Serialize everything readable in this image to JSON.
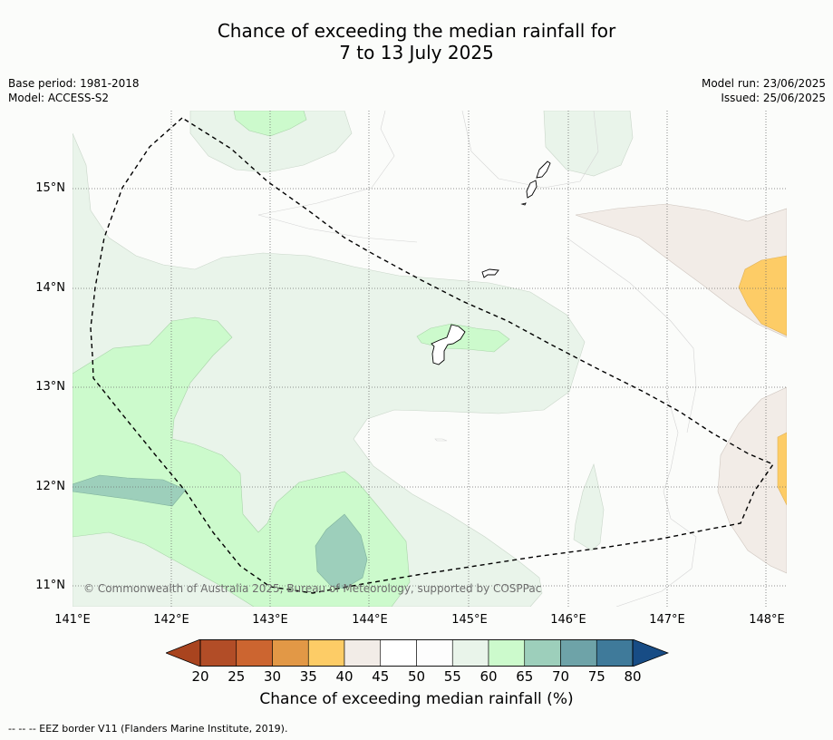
{
  "title": {
    "line1": "Chance of exceeding the median rainfall for",
    "line2": "7 to 13 July 2025"
  },
  "meta": {
    "base_period": "Base period: 1981-2018",
    "model": "Model: ACCESS-S2",
    "model_run": "Model run: 23/06/2025",
    "issued": "Issued: 25/06/2025"
  },
  "map": {
    "lat_labels": [
      "15°N",
      "14°N",
      "13°N",
      "12°N",
      "11°N"
    ],
    "lon_labels": [
      "141°E",
      "142°E",
      "143°E",
      "144°E",
      "145°E",
      "146°E",
      "147°E",
      "148°E"
    ],
    "copyright": "© Commonwealth of Australia 2025, Bureau of Meteorology, supported by COSPPac",
    "extent": {
      "lon_min": 141.0,
      "lon_max": 148.2,
      "lat_min": 10.78,
      "lat_max": 15.78
    }
  },
  "colorbar": {
    "ticks": [
      "20",
      "25",
      "30",
      "35",
      "40",
      "45",
      "50",
      "55",
      "60",
      "65",
      "70",
      "75",
      "80"
    ],
    "colors": [
      "#a9441f",
      "#b24d27",
      "#cc6530",
      "#e29846",
      "#fdcc66",
      "#f2ece7",
      "#ffffff",
      "#fdfdfd",
      "#e9f4ea",
      "#ccfacc",
      "#9dcfbb",
      "#6ea3a8",
      "#3f7a9a",
      "#174c85"
    ],
    "title": "Chance of exceeding median rainfall (%)"
  },
  "footer": "--  --  -- EEZ border V11 (Flanders Marine Institute, 2019)."
}
